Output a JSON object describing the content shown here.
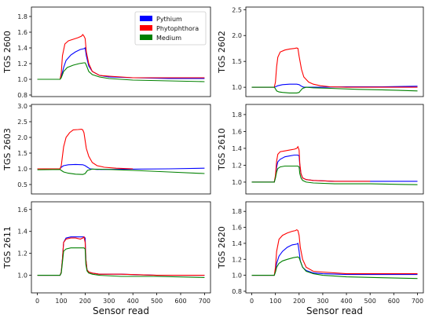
{
  "chart_data": [
    {
      "type": "line",
      "ylabel": "TGS 2600",
      "xlabel": "",
      "xlim": [
        -25,
        725
      ],
      "ylim": [
        0.78,
        1.92
      ],
      "yticks": [
        0.8,
        1.0,
        1.2,
        1.4,
        1.6,
        1.8
      ],
      "ytick_labels": [
        "0.8",
        "1.0",
        "1.2",
        "1.4",
        "1.6",
        "1.8"
      ],
      "legend": "top-right",
      "series": [
        {
          "name": "Pythium",
          "color": "#0000ff",
          "x": [
            0,
            95,
            100,
            110,
            120,
            140,
            160,
            180,
            195,
            200,
            205,
            215,
            230,
            260,
            300,
            400,
            550,
            700
          ],
          "y": [
            1.0,
            1.0,
            1.03,
            1.15,
            1.24,
            1.31,
            1.35,
            1.38,
            1.39,
            1.4,
            1.3,
            1.17,
            1.1,
            1.05,
            1.03,
            1.02,
            1.01,
            1.01
          ]
        },
        {
          "name": "Phytophthora",
          "color": "#ff0000",
          "x": [
            0,
            95,
            100,
            105,
            115,
            130,
            150,
            170,
            185,
            190,
            195,
            200,
            205,
            215,
            230,
            260,
            300,
            400,
            550,
            700
          ],
          "y": [
            1.0,
            1.0,
            1.08,
            1.3,
            1.45,
            1.49,
            1.51,
            1.53,
            1.55,
            1.57,
            1.55,
            1.52,
            1.35,
            1.2,
            1.1,
            1.05,
            1.04,
            1.02,
            1.02,
            1.02
          ]
        },
        {
          "name": "Medium",
          "color": "#008000",
          "x": [
            0,
            95,
            100,
            110,
            125,
            150,
            175,
            195,
            200,
            205,
            215,
            230,
            260,
            300,
            400,
            550,
            700
          ],
          "y": [
            1.0,
            1.0,
            1.02,
            1.1,
            1.15,
            1.18,
            1.2,
            1.21,
            1.21,
            1.18,
            1.1,
            1.06,
            1.03,
            1.01,
            0.99,
            0.98,
            0.97
          ]
        }
      ]
    },
    {
      "type": "line",
      "ylabel": "TGS 2602",
      "xlabel": "",
      "xlim": [
        -25,
        725
      ],
      "ylim": [
        0.82,
        2.55
      ],
      "yticks": [
        1.0,
        1.5,
        2.0,
        2.5
      ],
      "ytick_labels": [
        "1.0",
        "1.5",
        "2.0",
        "2.5"
      ],
      "series": [
        {
          "name": "Pythium",
          "color": "#0000ff",
          "x": [
            0,
            95,
            100,
            110,
            130,
            160,
            190,
            200,
            210,
            220,
            240,
            300,
            400,
            550,
            700
          ],
          "y": [
            1.0,
            1.0,
            1.01,
            1.03,
            1.05,
            1.06,
            1.06,
            1.05,
            1.02,
            1.0,
            1.0,
            1.0,
            1.01,
            1.01,
            1.02
          ]
        },
        {
          "name": "Phytophthora",
          "color": "#ff0000",
          "x": [
            0,
            95,
            100,
            105,
            110,
            120,
            140,
            160,
            180,
            190,
            195,
            200,
            210,
            220,
            240,
            260,
            290,
            330,
            400,
            550,
            700
          ],
          "y": [
            1.0,
            1.0,
            1.1,
            1.4,
            1.58,
            1.68,
            1.72,
            1.74,
            1.75,
            1.76,
            1.75,
            1.6,
            1.35,
            1.2,
            1.1,
            1.06,
            1.03,
            1.01,
            1.0,
            1.0,
            1.0
          ]
        },
        {
          "name": "Medium",
          "color": "#008000",
          "x": [
            0,
            95,
            100,
            105,
            115,
            130,
            160,
            190,
            200,
            205,
            215,
            230,
            260,
            330,
            450,
            550,
            700
          ],
          "y": [
            1.0,
            1.0,
            0.97,
            0.93,
            0.91,
            0.9,
            0.89,
            0.89,
            0.9,
            0.93,
            0.98,
            1.0,
            0.99,
            0.98,
            0.96,
            0.95,
            0.93
          ]
        }
      ]
    },
    {
      "type": "line",
      "ylabel": "TGS 2603",
      "xlabel": "",
      "xlim": [
        -25,
        725
      ],
      "ylim": [
        0.2,
        3.05
      ],
      "yticks": [
        0.5,
        1.0,
        1.5,
        2.0,
        2.5,
        3.0
      ],
      "ytick_labels": [
        "0.5",
        "1.0",
        "1.5",
        "2.0",
        "2.5",
        "3.0"
      ],
      "series": [
        {
          "name": "Pythium",
          "color": "#0000ff",
          "x": [
            0,
            95,
            100,
            110,
            130,
            160,
            190,
            200,
            210,
            220,
            250,
            400,
            550,
            700
          ],
          "y": [
            1.0,
            1.0,
            1.05,
            1.1,
            1.13,
            1.14,
            1.13,
            1.1,
            1.05,
            1.0,
            0.98,
            0.99,
            1.0,
            1.02
          ]
        },
        {
          "name": "Phytophthora",
          "color": "#ff0000",
          "x": [
            0,
            95,
            100,
            105,
            110,
            120,
            135,
            150,
            170,
            185,
            190,
            195,
            200,
            205,
            215,
            230,
            250,
            280,
            330,
            400
          ],
          "y": [
            1.0,
            1.0,
            1.1,
            1.4,
            1.7,
            2.0,
            2.15,
            2.24,
            2.25,
            2.26,
            2.24,
            2.15,
            1.9,
            1.65,
            1.4,
            1.2,
            1.1,
            1.05,
            1.02,
            1.0
          ]
        },
        {
          "name": "Medium",
          "color": "#008000",
          "x": [
            0,
            95,
            100,
            110,
            130,
            160,
            190,
            200,
            205,
            210,
            230,
            300,
            400,
            550,
            700
          ],
          "y": [
            0.97,
            0.98,
            0.95,
            0.9,
            0.86,
            0.83,
            0.82,
            0.85,
            0.9,
            0.95,
            0.99,
            0.98,
            0.95,
            0.9,
            0.85
          ]
        }
      ]
    },
    {
      "type": "line",
      "ylabel": "TGS 2610",
      "xlabel": "",
      "xlim": [
        -25,
        725
      ],
      "ylim": [
        0.86,
        1.92
      ],
      "yticks": [
        1.0,
        1.2,
        1.4,
        1.6,
        1.8
      ],
      "ytick_labels": [
        "1.0",
        "1.2",
        "1.4",
        "1.6",
        "1.8"
      ],
      "series": [
        {
          "name": "Pythium",
          "color": "#0000ff",
          "x": [
            0,
            95,
            100,
            105,
            110,
            120,
            140,
            160,
            180,
            195,
            200,
            203,
            208,
            215,
            230,
            260,
            350,
            500,
            700
          ],
          "y": [
            1.0,
            1.0,
            1.06,
            1.18,
            1.24,
            1.27,
            1.3,
            1.31,
            1.32,
            1.32,
            1.31,
            1.2,
            1.1,
            1.05,
            1.03,
            1.02,
            1.01,
            1.01,
            1.01
          ]
        },
        {
          "name": "Phytophthora",
          "color": "#ff0000",
          "x": [
            0,
            95,
            100,
            105,
            110,
            120,
            140,
            160,
            180,
            190,
            195,
            200,
            203,
            208,
            215,
            230,
            260,
            350,
            500
          ],
          "y": [
            1.0,
            1.0,
            1.08,
            1.25,
            1.33,
            1.36,
            1.37,
            1.38,
            1.39,
            1.4,
            1.42,
            1.38,
            1.22,
            1.1,
            1.05,
            1.03,
            1.02,
            1.01,
            1.01
          ]
        },
        {
          "name": "Medium",
          "color": "#008000",
          "x": [
            0,
            95,
            100,
            105,
            110,
            120,
            140,
            160,
            180,
            195,
            200,
            203,
            208,
            215,
            230,
            260,
            350,
            500,
            700
          ],
          "y": [
            1.0,
            1.0,
            1.05,
            1.12,
            1.16,
            1.18,
            1.19,
            1.19,
            1.19,
            1.19,
            1.18,
            1.1,
            1.05,
            1.02,
            1.0,
            0.99,
            0.98,
            0.98,
            0.97
          ]
        }
      ]
    },
    {
      "type": "line",
      "ylabel": "TGS 2611",
      "xlabel": "Sensor read",
      "xlim": [
        -25,
        725
      ],
      "ylim": [
        0.84,
        1.67
      ],
      "yticks": [
        1.0,
        1.2,
        1.4,
        1.6
      ],
      "ytick_labels": [
        "1.0",
        "1.2",
        "1.4",
        "1.6"
      ],
      "xticks": [
        0,
        100,
        200,
        300,
        400,
        500,
        600,
        700
      ],
      "xtick_labels": [
        "0",
        "100",
        "200",
        "300",
        "400",
        "500",
        "600",
        "700"
      ],
      "series": [
        {
          "name": "Pythium",
          "color": "#0000ff",
          "x": [
            0,
            95,
            100,
            105,
            110,
            120,
            140,
            160,
            180,
            195,
            200,
            203,
            208,
            215,
            230,
            260,
            350,
            500,
            700
          ],
          "y": [
            1.0,
            1.0,
            1.03,
            1.15,
            1.3,
            1.34,
            1.35,
            1.35,
            1.35,
            1.35,
            1.34,
            1.15,
            1.05,
            1.03,
            1.02,
            1.01,
            1.01,
            1.0,
            1.0
          ]
        },
        {
          "name": "Phytophthora",
          "color": "#ff0000",
          "x": [
            0,
            95,
            100,
            105,
            110,
            120,
            140,
            160,
            180,
            190,
            195,
            200,
            203,
            208,
            215,
            230,
            260,
            350,
            500,
            700
          ],
          "y": [
            1.0,
            1.0,
            1.03,
            1.15,
            1.3,
            1.33,
            1.34,
            1.34,
            1.33,
            1.34,
            1.35,
            1.3,
            1.15,
            1.05,
            1.03,
            1.02,
            1.01,
            1.01,
            1.0,
            1.0
          ]
        },
        {
          "name": "Medium",
          "color": "#008000",
          "x": [
            0,
            95,
            100,
            105,
            110,
            120,
            140,
            160,
            180,
            195,
            200,
            203,
            208,
            215,
            230,
            260,
            350,
            500,
            700
          ],
          "y": [
            1.0,
            1.0,
            1.02,
            1.12,
            1.22,
            1.24,
            1.25,
            1.25,
            1.25,
            1.25,
            1.24,
            1.1,
            1.04,
            1.02,
            1.01,
            1.0,
            0.99,
            0.99,
            0.98
          ]
        }
      ]
    },
    {
      "type": "line",
      "ylabel": "TGS 2620",
      "xlabel": "Sensor read",
      "xlim": [
        -25,
        725
      ],
      "ylim": [
        0.78,
        1.92
      ],
      "yticks": [
        0.8,
        1.0,
        1.2,
        1.4,
        1.6,
        1.8
      ],
      "ytick_labels": [
        "0.8",
        "1.0",
        "1.2",
        "1.4",
        "1.6",
        "1.8"
      ],
      "xticks": [
        0,
        100,
        200,
        300,
        400,
        500,
        600,
        700
      ],
      "xtick_labels": [
        "0",
        "100",
        "200",
        "300",
        "400",
        "500",
        "600",
        "700"
      ],
      "series": [
        {
          "name": "Pythium",
          "color": "#0000ff",
          "x": [
            0,
            95,
            100,
            105,
            115,
            130,
            150,
            170,
            190,
            195,
            200,
            205,
            215,
            230,
            260,
            300,
            400,
            550,
            700
          ],
          "y": [
            1.0,
            1.0,
            1.05,
            1.15,
            1.24,
            1.3,
            1.35,
            1.38,
            1.39,
            1.4,
            1.3,
            1.18,
            1.1,
            1.06,
            1.03,
            1.02,
            1.01,
            1.01,
            1.01
          ]
        },
        {
          "name": "Phytophthora",
          "color": "#ff0000",
          "x": [
            0,
            95,
            100,
            105,
            115,
            130,
            150,
            170,
            185,
            190,
            195,
            200,
            205,
            215,
            230,
            260,
            300,
            400,
            550,
            700
          ],
          "y": [
            1.0,
            1.0,
            1.1,
            1.3,
            1.45,
            1.5,
            1.53,
            1.55,
            1.56,
            1.57,
            1.56,
            1.5,
            1.35,
            1.2,
            1.1,
            1.05,
            1.04,
            1.02,
            1.02,
            1.02
          ]
        },
        {
          "name": "Medium",
          "color": "#008000",
          "x": [
            0,
            95,
            100,
            105,
            115,
            130,
            150,
            175,
            195,
            200,
            205,
            215,
            230,
            260,
            300,
            400,
            550,
            700
          ],
          "y": [
            1.0,
            1.0,
            1.04,
            1.1,
            1.15,
            1.18,
            1.2,
            1.22,
            1.23,
            1.22,
            1.18,
            1.1,
            1.05,
            1.02,
            1.0,
            0.98,
            0.97,
            0.96
          ]
        }
      ]
    }
  ]
}
